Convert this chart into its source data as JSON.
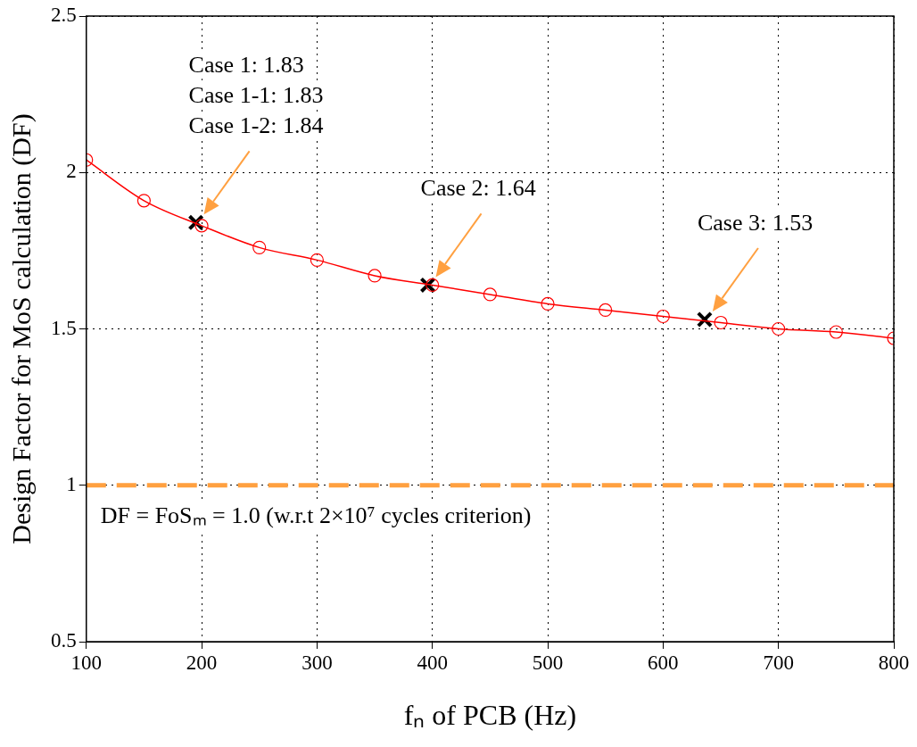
{
  "chart_data": {
    "type": "line",
    "xlabel": "fₙ of PCB (Hz)",
    "ylabel": "Design Factor for MoS calculation (DF)",
    "xlim": [
      100,
      800
    ],
    "xticks": [
      100,
      200,
      300,
      400,
      500,
      600,
      700,
      800
    ],
    "ylim": [
      0.5,
      2.5
    ],
    "yticks": [
      0.5,
      1,
      1.5,
      2,
      2.5
    ],
    "grid": true,
    "legend": false,
    "series": [
      {
        "marker": "circle",
        "color": "#ff0000",
        "x": [
          100,
          150,
          200,
          250,
          300,
          350,
          400,
          450,
          500,
          550,
          600,
          650,
          700,
          750,
          800
        ],
        "values": [
          2.04,
          1.91,
          1.83,
          1.76,
          1.72,
          1.67,
          1.64,
          1.61,
          1.58,
          1.56,
          1.54,
          1.52,
          1.5,
          1.49,
          1.47
        ]
      },
      {
        "type": "scatter",
        "marker": "cross",
        "color": "#000000",
        "x": [
          195,
          396,
          636
        ],
        "values": [
          1.84,
          1.64,
          1.53
        ]
      }
    ],
    "ref_lines": [
      {
        "axis": "y",
        "value": 1,
        "label": "DF = FoSₘ = 1.0 (w.r.t 2×10⁷ cycles criterion)",
        "color": "#ffa040",
        "line_style": "dashed"
      }
    ],
    "annotations": [
      "Case 1: 1.83\nCase 1-1: 1.83\nCase 1-2: 1.84",
      "Case 2: 1.64",
      "Case 3: 1.53"
    ]
  }
}
